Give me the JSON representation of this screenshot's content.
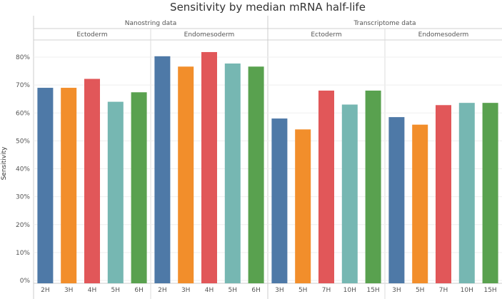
{
  "chart_data": {
    "type": "bar",
    "title": "Sensitivity by median mRNA half-life",
    "ylabel": "Sensitivity",
    "ylim": [
      0,
      0.85
    ],
    "yticks": [
      "0%",
      "10%",
      "20%",
      "30%",
      "40%",
      "50%",
      "60%",
      "70%",
      "80%"
    ],
    "grid": true,
    "colors": [
      "#4e79a7",
      "#f28e2b",
      "#e15759",
      "#76b7b2",
      "#59a14f"
    ],
    "groups": [
      {
        "dataset": "Nanostring data",
        "panels": [
          {
            "name": "Ectoderm",
            "categories": [
              "2H",
              "3H",
              "4H",
              "5H",
              "6H"
            ],
            "values": [
              0.69,
              0.69,
              0.722,
              0.64,
              0.674
            ]
          },
          {
            "name": "Endomesoderm",
            "categories": [
              "2H",
              "3H",
              "4H",
              "5H",
              "6H"
            ],
            "values": [
              0.803,
              0.766,
              0.818,
              0.777,
              0.766
            ]
          }
        ]
      },
      {
        "dataset": "Transcriptome data",
        "panels": [
          {
            "name": "Ectoderm",
            "categories": [
              "3H",
              "5H",
              "7H",
              "10H",
              "15H"
            ],
            "values": [
              0.58,
              0.541,
              0.68,
              0.63,
              0.68
            ]
          },
          {
            "name": "Endomesoderm",
            "categories": [
              "3H",
              "5H",
              "7H",
              "10H",
              "15H"
            ],
            "values": [
              0.585,
              0.558,
              0.628,
              0.636,
              0.636
            ]
          }
        ]
      }
    ]
  }
}
